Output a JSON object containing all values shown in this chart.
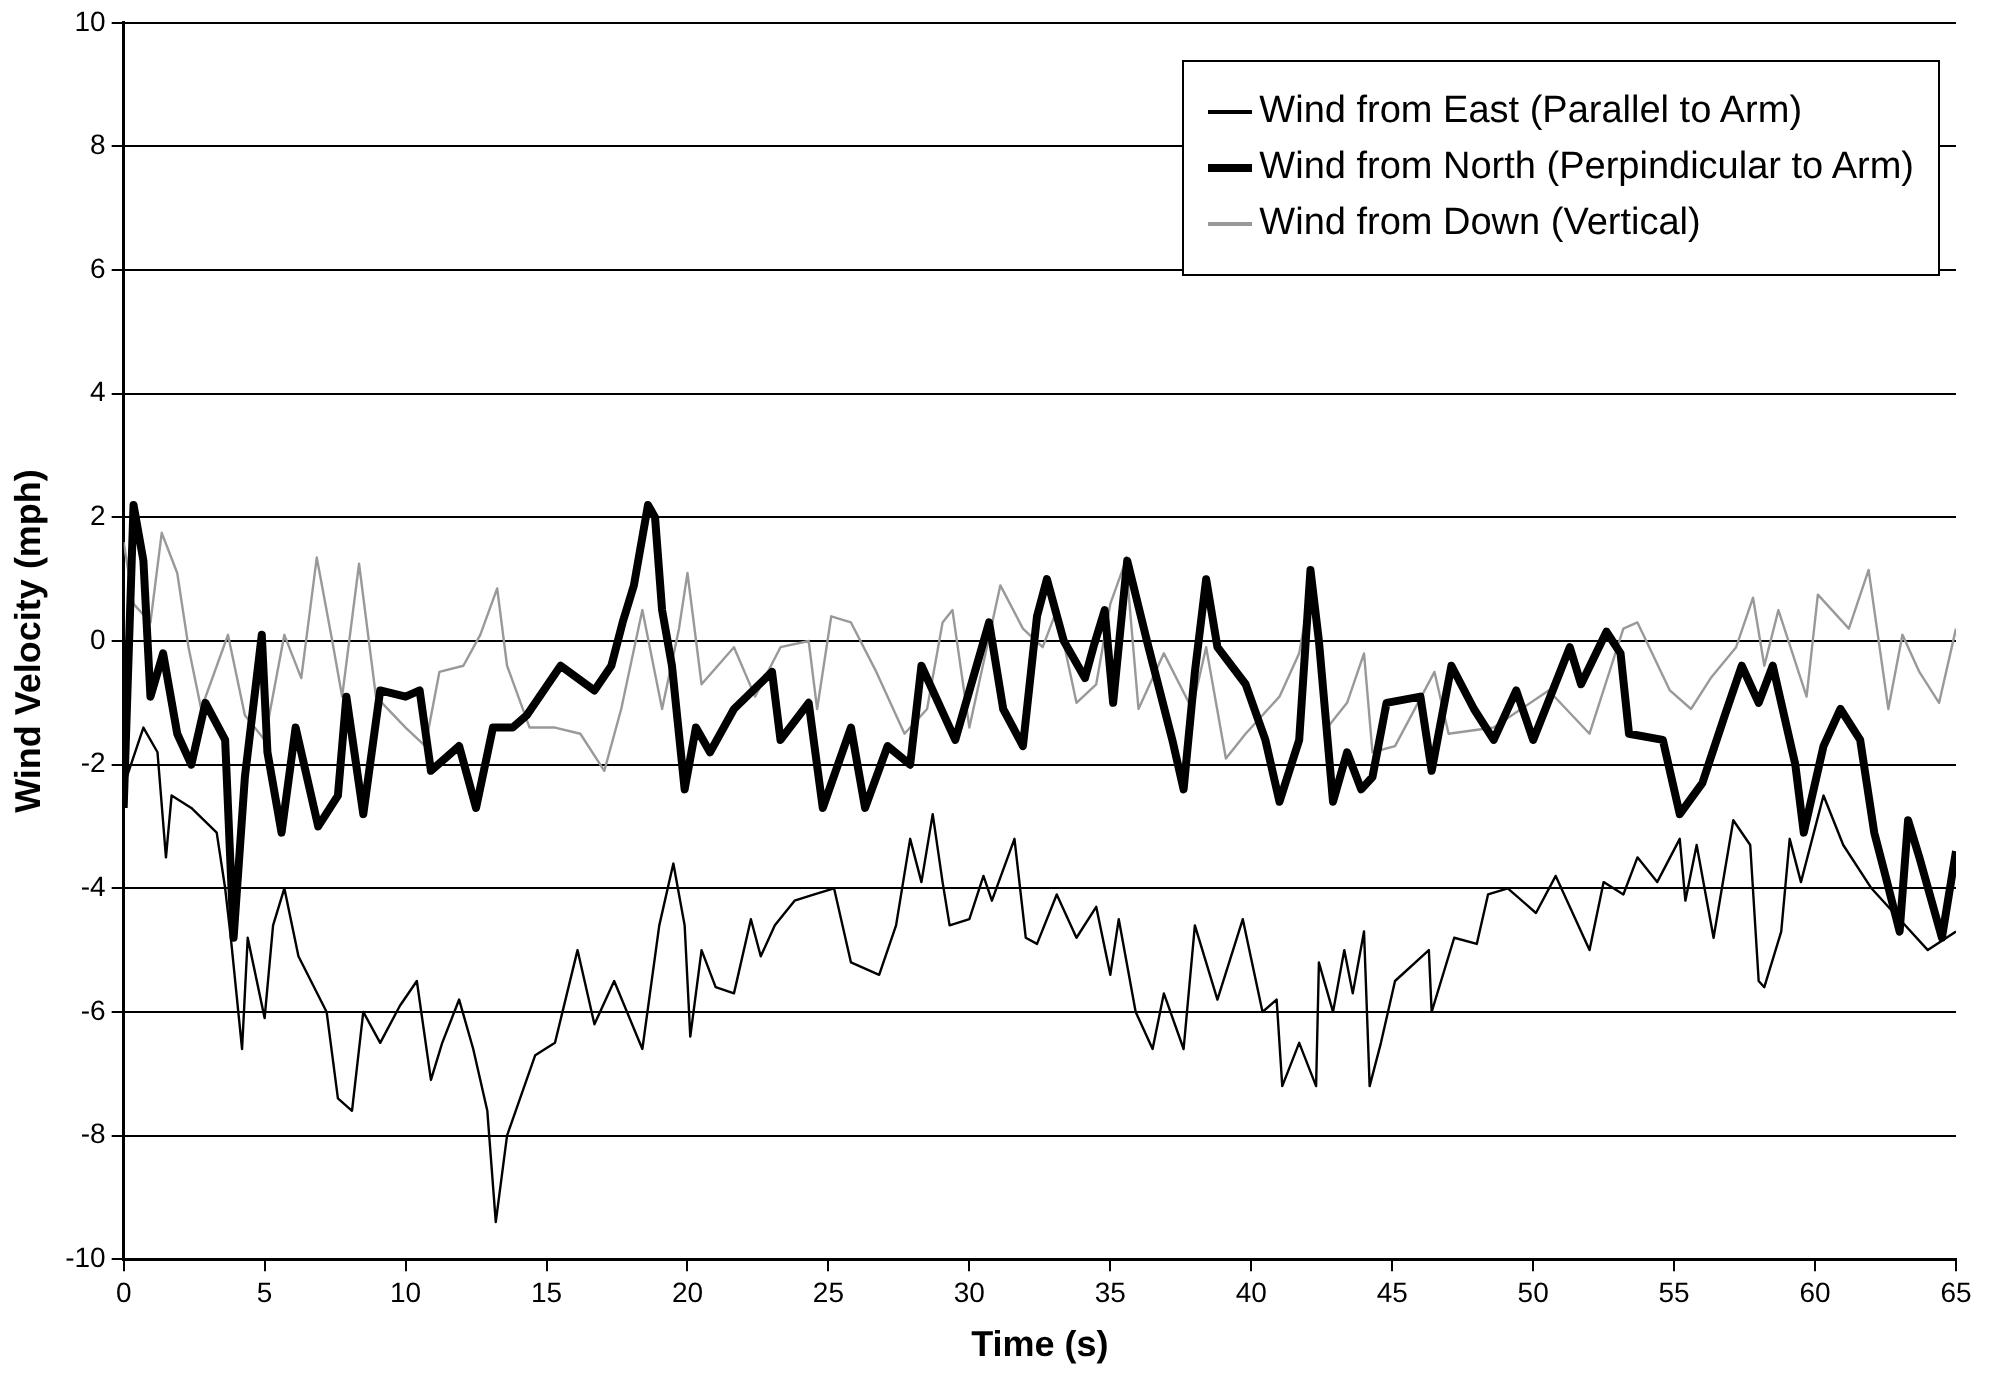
{
  "chart_data": {
    "type": "line",
    "xlabel": "Time (s)",
    "ylabel": "Wind Velocity (mph)",
    "xlim": [
      0,
      65
    ],
    "xticks": [
      0,
      5,
      10,
      15,
      20,
      25,
      30,
      35,
      40,
      45,
      50,
      55,
      60,
      65
    ],
    "ylim": [
      -10,
      10
    ],
    "yticks": [
      -10,
      -8,
      -6,
      -4,
      -2,
      0,
      2,
      4,
      6,
      8,
      10
    ],
    "grid": "y",
    "legend": "top right",
    "marker": "none",
    "line_style": "solid",
    "series": [
      {
        "name": "Wind from East (Parallel to Arm)",
        "color": "#000000",
        "x": [
          0,
          0.7,
          1.2,
          1.5,
          1.7,
          2.4,
          3.3,
          3.6,
          3.8,
          4.2,
          4.4,
          5.0,
          5.3,
          5.7,
          6.2,
          7.2,
          7.6,
          8.1,
          8.5,
          9.1,
          9.8,
          10.4,
          10.9,
          11.3,
          11.9,
          12.4,
          12.9,
          13.2,
          13.6,
          14.6,
          15.3,
          16.1,
          16.7,
          17.4,
          18.4,
          19.0,
          19.5,
          19.9,
          20.1,
          20.5,
          21.0,
          21.65,
          22.25,
          22.6,
          23.1,
          23.8,
          24.5,
          25.2,
          25.8,
          26.8,
          27.4,
          27.9,
          28.3,
          28.7,
          29.05,
          29.3,
          30.0,
          30.5,
          30.8,
          31.6,
          32.0,
          32.4,
          33.1,
          33.8,
          34.5,
          35.0,
          35.3,
          35.9,
          36.5,
          36.9,
          37.6,
          38.0,
          38.8,
          39.7,
          40.4,
          40.9,
          41.1,
          41.7,
          42.3,
          42.4,
          42.9,
          43.3,
          43.6,
          44.0,
          44.2,
          44.6,
          45.1,
          46.3,
          46.4,
          47.2,
          48.0,
          48.4,
          49.1,
          50.1,
          50.8,
          52.0,
          52.5,
          53.2,
          53.7,
          54.4,
          55.2,
          55.4,
          55.8,
          56.4,
          57.1,
          57.7,
          58.0,
          58.2,
          58.8,
          59.1,
          59.5,
          60.3,
          61.0,
          62.0,
          63.0,
          64.0,
          65
        ],
        "values": [
          -2.35,
          -1.4,
          -1.8,
          -3.5,
          -2.5,
          -2.7,
          -3.1,
          -4.0,
          -4.8,
          -6.6,
          -4.8,
          -6.1,
          -4.6,
          -4.0,
          -5.1,
          -6.0,
          -7.4,
          -7.6,
          -6.0,
          -6.5,
          -5.9,
          -5.5,
          -7.1,
          -6.5,
          -5.8,
          -6.6,
          -7.6,
          -9.4,
          -8.0,
          -6.7,
          -6.5,
          -5.0,
          -6.2,
          -5.5,
          -6.6,
          -4.6,
          -3.6,
          -4.6,
          -6.4,
          -5.0,
          -5.6,
          -5.7,
          -4.5,
          -5.1,
          -4.6,
          -4.2,
          -4.1,
          -4.0,
          -5.2,
          -5.4,
          -4.6,
          -3.2,
          -3.9,
          -2.8,
          -3.9,
          -4.6,
          -4.5,
          -3.8,
          -4.2,
          -3.2,
          -4.8,
          -4.9,
          -4.1,
          -4.8,
          -4.3,
          -5.4,
          -4.5,
          -6.0,
          -6.6,
          -5.7,
          -6.6,
          -4.6,
          -5.8,
          -4.5,
          -6.0,
          -5.8,
          -7.2,
          -6.5,
          -7.2,
          -5.2,
          -6.0,
          -5.0,
          -5.7,
          -4.7,
          -7.2,
          -6.5,
          -5.5,
          -5.0,
          -6.0,
          -4.8,
          -4.9,
          -4.1,
          -4.0,
          -4.4,
          -3.8,
          -5.0,
          -3.9,
          -4.1,
          -3.5,
          -3.9,
          -3.2,
          -4.2,
          -3.3,
          -4.8,
          -2.9,
          -3.3,
          -5.5,
          -5.6,
          -4.7,
          -3.2,
          -3.9,
          -2.5,
          -3.3,
          -4.0,
          -4.5,
          -5.0,
          -4.7
        ]
      },
      {
        "name": "Wind from North (Perpindicular to Arm)",
        "color": "#000000",
        "x": [
          0,
          0.35,
          0.7,
          0.95,
          1.4,
          1.9,
          2.4,
          2.9,
          3.6,
          3.9,
          4.3,
          4.9,
          5.1,
          5.6,
          6.1,
          6.4,
          6.9,
          7.6,
          7.9,
          8.5,
          9.1,
          10.0,
          10.5,
          10.9,
          11.9,
          12.5,
          13.1,
          13.8,
          14.3,
          15.5,
          16.7,
          17.3,
          17.7,
          18.1,
          18.6,
          18.85,
          19.1,
          19.45,
          19.9,
          20.3,
          20.8,
          21.65,
          23.0,
          23.3,
          24.3,
          24.8,
          25.8,
          26.3,
          27.1,
          27.9,
          28.3,
          29.5,
          30.7,
          31.2,
          31.9,
          32.4,
          32.75,
          33.35,
          34.1,
          34.4,
          34.8,
          35.1,
          35.6,
          36.3,
          37.2,
          37.6,
          38.0,
          38.4,
          38.8,
          39.8,
          40.5,
          41.0,
          41.7,
          42.1,
          42.4,
          42.9,
          43.4,
          43.9,
          44.3,
          44.8,
          46.0,
          46.4,
          47.1,
          47.9,
          48.6,
          49.4,
          50.0,
          51.3,
          51.7,
          52.6,
          53.1,
          53.4,
          54.6,
          55.2,
          56.0,
          56.8,
          57.4,
          58.0,
          58.5,
          59.3,
          59.6,
          60.3,
          60.9,
          61.6,
          62.1,
          62.5,
          63.0,
          63.3,
          63.7,
          64.5,
          65
        ],
        "values": [
          -2.7,
          2.2,
          1.3,
          -0.9,
          -0.2,
          -1.5,
          -2.0,
          -1.0,
          -1.6,
          -4.8,
          -2.2,
          0.1,
          -1.8,
          -3.1,
          -1.4,
          -2.0,
          -3.0,
          -2.5,
          -0.9,
          -2.8,
          -0.8,
          -0.9,
          -0.8,
          -2.1,
          -1.7,
          -2.7,
          -1.4,
          -1.4,
          -1.2,
          -0.4,
          -0.8,
          -0.4,
          0.3,
          0.9,
          2.2,
          2.0,
          0.5,
          -0.4,
          -2.4,
          -1.4,
          -1.8,
          -1.1,
          -0.5,
          -1.6,
          -1.0,
          -2.7,
          -1.4,
          -2.7,
          -1.7,
          -2.0,
          -0.4,
          -1.6,
          0.3,
          -1.1,
          -1.7,
          0.4,
          1.0,
          0.0,
          -0.6,
          -0.1,
          0.5,
          -1.0,
          1.3,
          0.0,
          -1.6,
          -2.4,
          -0.5,
          1.0,
          -0.1,
          -0.7,
          -1.6,
          -2.6,
          -1.6,
          1.15,
          0.0,
          -2.6,
          -1.8,
          -2.4,
          -2.2,
          -1.0,
          -0.9,
          -2.1,
          -0.4,
          -1.1,
          -1.6,
          -0.8,
          -1.6,
          -0.1,
          -0.7,
          0.15,
          -0.2,
          -1.5,
          -1.6,
          -2.8,
          -2.3,
          -1.2,
          -0.4,
          -1.0,
          -0.4,
          -2.0,
          -3.1,
          -1.7,
          -1.1,
          -1.6,
          -3.1,
          -3.8,
          -4.7,
          -2.9,
          -3.5,
          -4.8,
          -3.4
        ]
      },
      {
        "name": "Wind from Down (Vertical)",
        "color": "#999999",
        "x": [
          0,
          0.35,
          0.95,
          1.35,
          1.9,
          2.3,
          2.75,
          3.7,
          4.3,
          5.0,
          5.7,
          6.3,
          6.85,
          7.4,
          7.75,
          8.35,
          8.95,
          10.0,
          10.7,
          11.2,
          12.05,
          12.65,
          13.25,
          13.6,
          14.4,
          15.3,
          16.2,
          17.05,
          17.65,
          18.4,
          19.1,
          19.7,
          20.0,
          20.5,
          21.65,
          22.4,
          23.3,
          24.3,
          24.6,
          25.1,
          25.8,
          26.7,
          27.7,
          28.5,
          29.05,
          29.4,
          30.0,
          31.1,
          31.9,
          32.6,
          33.1,
          33.8,
          34.5,
          35.0,
          35.55,
          36.0,
          36.9,
          37.9,
          38.4,
          39.1,
          39.8,
          41.0,
          41.7,
          42.2,
          42.7,
          43.4,
          44.0,
          44.3,
          45.1,
          46.5,
          47.0,
          48.6,
          50.55,
          52.0,
          53.2,
          53.7,
          54.85,
          55.6,
          56.3,
          57.2,
          57.8,
          58.2,
          58.7,
          59.7,
          60.1,
          61.2,
          61.9,
          62.6,
          63.1,
          63.7,
          64.4,
          65
        ],
        "values": [
          1.6,
          0.6,
          0.3,
          1.75,
          1.1,
          -0.1,
          -1.1,
          0.1,
          -1.2,
          -1.6,
          0.1,
          -0.6,
          1.35,
          0.0,
          -0.9,
          1.25,
          -0.9,
          -1.4,
          -1.7,
          -0.5,
          -0.4,
          0.1,
          0.85,
          -0.4,
          -1.4,
          -1.4,
          -1.5,
          -2.1,
          -1.1,
          0.5,
          -1.1,
          0.2,
          1.1,
          -0.7,
          -0.1,
          -0.9,
          -0.1,
          0.0,
          -1.1,
          0.4,
          0.3,
          -0.5,
          -1.5,
          -1.1,
          0.3,
          0.5,
          -1.4,
          0.9,
          0.2,
          -0.1,
          0.5,
          -1.0,
          -0.7,
          0.6,
          1.3,
          -1.1,
          -0.2,
          -1.1,
          -0.1,
          -1.9,
          -1.5,
          -0.9,
          -0.2,
          1.1,
          -1.4,
          -1.0,
          -0.2,
          -1.8,
          -1.7,
          -0.5,
          -1.5,
          -1.4,
          -0.8,
          -1.5,
          0.2,
          0.3,
          -0.8,
          -1.1,
          -0.6,
          -0.1,
          0.7,
          -0.4,
          0.5,
          -0.9,
          0.75,
          0.2,
          1.15,
          -1.1,
          0.1,
          -0.5,
          -1.0,
          0.2
        ]
      }
    ]
  }
}
